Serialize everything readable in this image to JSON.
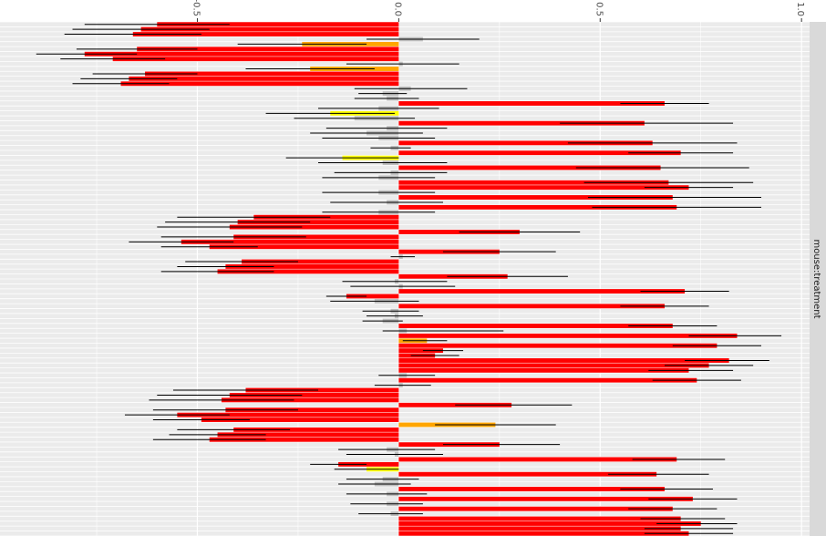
{
  "chart_data": {
    "type": "bar",
    "orientation": "horizontal",
    "rotated_view": true,
    "facet_strip": "mouse:treatment",
    "value_axis": {
      "range": [
        -0.99,
        1.02
      ],
      "ticks": [
        -0.5,
        0.0,
        0.5,
        1.0
      ],
      "tick_labels": [
        "-0.5",
        "0.0",
        "0.5",
        "1.0"
      ]
    },
    "grid": true,
    "legend": "none",
    "colors": {
      "panel": "#ebebeb",
      "gridline": "#ffffff",
      "strip": "#d9d9d9",
      "errorbar": "#000000",
      "red": "#ff0000",
      "orange": "#ffa500",
      "yellow": "#ffff00",
      "grey": "#bebebe"
    },
    "rows": [
      {
        "value": -0.6,
        "lower": -0.78,
        "upper": -0.42,
        "color": "red"
      },
      {
        "value": -0.64,
        "lower": -0.81,
        "upper": -0.47,
        "color": "red"
      },
      {
        "value": -0.66,
        "lower": -0.83,
        "upper": -0.49,
        "color": "red"
      },
      {
        "value": 0.06,
        "lower": -0.08,
        "upper": 0.2,
        "color": "grey"
      },
      {
        "value": -0.24,
        "lower": -0.4,
        "upper": -0.08,
        "color": "orange"
      },
      {
        "value": -0.65,
        "lower": -0.8,
        "upper": -0.5,
        "color": "red"
      },
      {
        "value": -0.78,
        "lower": -0.9,
        "upper": -0.65,
        "color": "red"
      },
      {
        "value": -0.71,
        "lower": -0.84,
        "upper": -0.58,
        "color": "red"
      },
      {
        "value": 0.01,
        "lower": -0.13,
        "upper": 0.15,
        "color": "grey"
      },
      {
        "value": -0.22,
        "lower": -0.38,
        "upper": -0.06,
        "color": "orange"
      },
      {
        "value": -0.63,
        "lower": -0.76,
        "upper": -0.5,
        "color": "red"
      },
      {
        "value": -0.67,
        "lower": -0.79,
        "upper": -0.55,
        "color": "red"
      },
      {
        "value": -0.69,
        "lower": -0.81,
        "upper": -0.57,
        "color": "red"
      },
      {
        "value": 0.03,
        "lower": -0.11,
        "upper": 0.17,
        "color": "grey"
      },
      {
        "value": -0.04,
        "lower": -0.1,
        "upper": 0.02,
        "color": "grey"
      },
      {
        "value": -0.03,
        "lower": -0.11,
        "upper": 0.05,
        "color": "grey"
      },
      {
        "value": 0.66,
        "lower": 0.55,
        "upper": 0.77,
        "color": "red"
      },
      {
        "value": -0.05,
        "lower": -0.2,
        "upper": 0.1,
        "color": "grey"
      },
      {
        "value": -0.17,
        "lower": -0.33,
        "upper": -0.01,
        "color": "yellow"
      },
      {
        "value": -0.11,
        "lower": -0.26,
        "upper": 0.04,
        "color": "grey"
      },
      {
        "value": 0.61,
        "lower": 0.4,
        "upper": 0.83,
        "color": "red"
      },
      {
        "value": -0.03,
        "lower": -0.18,
        "upper": 0.12,
        "color": "grey"
      },
      {
        "value": -0.08,
        "lower": -0.22,
        "upper": 0.06,
        "color": "grey"
      },
      {
        "value": -0.05,
        "lower": -0.19,
        "upper": 0.09,
        "color": "grey"
      },
      {
        "value": 0.63,
        "lower": 0.42,
        "upper": 0.84,
        "color": "red"
      },
      {
        "value": -0.02,
        "lower": -0.07,
        "upper": 0.03,
        "color": "grey"
      },
      {
        "value": 0.7,
        "lower": 0.57,
        "upper": 0.83,
        "color": "red"
      },
      {
        "value": -0.14,
        "lower": -0.28,
        "upper": 0.0,
        "color": "yellow"
      },
      {
        "value": -0.04,
        "lower": -0.2,
        "upper": 0.12,
        "color": "grey"
      },
      {
        "value": 0.65,
        "lower": 0.44,
        "upper": 0.87,
        "color": "red"
      },
      {
        "value": -0.02,
        "lower": -0.16,
        "upper": 0.12,
        "color": "grey"
      },
      {
        "value": -0.05,
        "lower": -0.19,
        "upper": 0.09,
        "color": "grey"
      },
      {
        "value": 0.67,
        "lower": 0.46,
        "upper": 0.88,
        "color": "red"
      },
      {
        "value": 0.72,
        "lower": 0.61,
        "upper": 0.83,
        "color": "red"
      },
      {
        "value": -0.05,
        "lower": -0.19,
        "upper": 0.09,
        "color": "grey"
      },
      {
        "value": 0.68,
        "lower": 0.47,
        "upper": 0.9,
        "color": "red"
      },
      {
        "value": -0.03,
        "lower": -0.17,
        "upper": 0.11,
        "color": "grey"
      },
      {
        "value": 0.69,
        "lower": 0.48,
        "upper": 0.9,
        "color": "red"
      },
      {
        "value": -0.05,
        "lower": -0.19,
        "upper": 0.09,
        "color": "grey"
      },
      {
        "value": -0.36,
        "lower": -0.55,
        "upper": -0.17,
        "color": "red"
      },
      {
        "value": -0.4,
        "lower": -0.58,
        "upper": -0.22,
        "color": "red"
      },
      {
        "value": -0.42,
        "lower": -0.6,
        "upper": -0.24,
        "color": "red"
      },
      {
        "value": 0.3,
        "lower": 0.15,
        "upper": 0.45,
        "color": "red"
      },
      {
        "value": -0.41,
        "lower": -0.59,
        "upper": -0.23,
        "color": "red"
      },
      {
        "value": -0.54,
        "lower": -0.67,
        "upper": -0.41,
        "color": "red"
      },
      {
        "value": -0.47,
        "lower": -0.59,
        "upper": -0.35,
        "color": "red"
      },
      {
        "value": 0.25,
        "lower": 0.11,
        "upper": 0.39,
        "color": "red"
      },
      {
        "value": 0.01,
        "lower": -0.02,
        "upper": 0.04,
        "color": "grey"
      },
      {
        "value": -0.39,
        "lower": -0.53,
        "upper": -0.25,
        "color": "red"
      },
      {
        "value": -0.43,
        "lower": -0.55,
        "upper": -0.31,
        "color": "red"
      },
      {
        "value": -0.45,
        "lower": -0.59,
        "upper": -0.31,
        "color": "red"
      },
      {
        "value": 0.27,
        "lower": 0.12,
        "upper": 0.42,
        "color": "red"
      },
      {
        "value": -0.01,
        "lower": -0.14,
        "upper": 0.12,
        "color": "grey"
      },
      {
        "value": 0.01,
        "lower": -0.12,
        "upper": 0.14,
        "color": "grey"
      },
      {
        "value": 0.71,
        "lower": 0.6,
        "upper": 0.82,
        "color": "red"
      },
      {
        "value": -0.13,
        "lower": -0.18,
        "upper": -0.08,
        "color": "red"
      },
      {
        "value": -0.06,
        "lower": -0.17,
        "upper": 0.05,
        "color": "grey"
      },
      {
        "value": 0.66,
        "lower": 0.55,
        "upper": 0.77,
        "color": "red"
      },
      {
        "value": -0.02,
        "lower": -0.09,
        "upper": 0.05,
        "color": "grey"
      },
      {
        "value": -0.01,
        "lower": -0.08,
        "upper": 0.06,
        "color": "grey"
      },
      {
        "value": -0.04,
        "lower": -0.09,
        "upper": 0.01,
        "color": "grey"
      },
      {
        "value": 0.68,
        "lower": 0.57,
        "upper": 0.79,
        "color": "red"
      },
      {
        "value": 0.02,
        "lower": -0.04,
        "upper": 0.26,
        "color": "grey"
      },
      {
        "value": 0.84,
        "lower": 0.72,
        "upper": 0.95,
        "color": "red"
      },
      {
        "value": 0.07,
        "lower": 0.01,
        "upper": 0.12,
        "color": "orange"
      },
      {
        "value": 0.79,
        "lower": 0.68,
        "upper": 0.9,
        "color": "red"
      },
      {
        "value": 0.11,
        "lower": 0.06,
        "upper": 0.16,
        "color": "red"
      },
      {
        "value": 0.09,
        "lower": 0.03,
        "upper": 0.15,
        "color": "red"
      },
      {
        "value": 0.82,
        "lower": 0.71,
        "upper": 0.92,
        "color": "red"
      },
      {
        "value": 0.77,
        "lower": 0.66,
        "upper": 0.88,
        "color": "red"
      },
      {
        "value": 0.72,
        "lower": 0.62,
        "upper": 0.83,
        "color": "red"
      },
      {
        "value": 0.02,
        "lower": -0.05,
        "upper": 0.09,
        "color": "grey"
      },
      {
        "value": 0.74,
        "lower": 0.63,
        "upper": 0.85,
        "color": "red"
      },
      {
        "value": 0.01,
        "lower": -0.06,
        "upper": 0.08,
        "color": "grey"
      },
      {
        "value": -0.38,
        "lower": -0.56,
        "upper": -0.2,
        "color": "red"
      },
      {
        "value": -0.42,
        "lower": -0.6,
        "upper": -0.24,
        "color": "red"
      },
      {
        "value": -0.44,
        "lower": -0.62,
        "upper": -0.26,
        "color": "red"
      },
      {
        "value": 0.28,
        "lower": 0.14,
        "upper": 0.43,
        "color": "red"
      },
      {
        "value": -0.43,
        "lower": -0.61,
        "upper": -0.25,
        "color": "red"
      },
      {
        "value": -0.55,
        "lower": -0.68,
        "upper": -0.42,
        "color": "red"
      },
      {
        "value": -0.49,
        "lower": -0.61,
        "upper": -0.37,
        "color": "red"
      },
      {
        "value": 0.24,
        "lower": 0.09,
        "upper": 0.39,
        "color": "orange"
      },
      {
        "value": -0.41,
        "lower": -0.55,
        "upper": -0.27,
        "color": "red"
      },
      {
        "value": -0.45,
        "lower": -0.57,
        "upper": -0.33,
        "color": "red"
      },
      {
        "value": -0.47,
        "lower": -0.61,
        "upper": -0.33,
        "color": "red"
      },
      {
        "value": 0.25,
        "lower": 0.11,
        "upper": 0.4,
        "color": "red"
      },
      {
        "value": -0.03,
        "lower": -0.15,
        "upper": 0.09,
        "color": "grey"
      },
      {
        "value": -0.01,
        "lower": -0.13,
        "upper": 0.11,
        "color": "grey"
      },
      {
        "value": 0.69,
        "lower": 0.58,
        "upper": 0.81,
        "color": "red"
      },
      {
        "value": -0.15,
        "lower": -0.22,
        "upper": -0.08,
        "color": "red"
      },
      {
        "value": -0.08,
        "lower": -0.16,
        "upper": 0.0,
        "color": "yellow"
      },
      {
        "value": 0.64,
        "lower": 0.52,
        "upper": 0.77,
        "color": "red"
      },
      {
        "value": -0.04,
        "lower": -0.13,
        "upper": 0.05,
        "color": "grey"
      },
      {
        "value": -0.06,
        "lower": -0.15,
        "upper": 0.03,
        "color": "grey"
      },
      {
        "value": 0.66,
        "lower": 0.55,
        "upper": 0.78,
        "color": "red"
      },
      {
        "value": -0.03,
        "lower": -0.13,
        "upper": 0.07,
        "color": "grey"
      },
      {
        "value": 0.73,
        "lower": 0.62,
        "upper": 0.84,
        "color": "red"
      },
      {
        "value": -0.03,
        "lower": -0.12,
        "upper": 0.06,
        "color": "grey"
      },
      {
        "value": 0.68,
        "lower": 0.57,
        "upper": 0.79,
        "color": "red"
      },
      {
        "value": -0.02,
        "lower": -0.1,
        "upper": 0.06,
        "color": "grey"
      },
      {
        "value": 0.7,
        "lower": 0.6,
        "upper": 0.81,
        "color": "red"
      },
      {
        "value": 0.75,
        "lower": 0.64,
        "upper": 0.84,
        "color": "red"
      },
      {
        "value": 0.7,
        "lower": 0.61,
        "upper": 0.83,
        "color": "red"
      },
      {
        "value": 0.72,
        "lower": 0.61,
        "upper": 0.83,
        "color": "red"
      }
    ]
  }
}
